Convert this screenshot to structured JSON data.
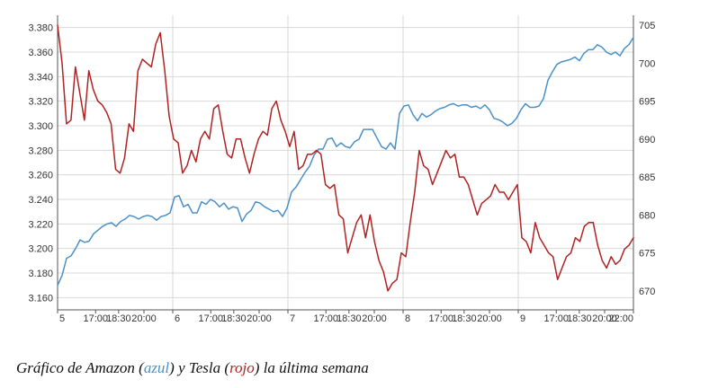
{
  "chart_data": {
    "type": "line",
    "x_ticks": [
      "5",
      "17:00",
      "18:30",
      "20:00",
      "6",
      "17:00",
      "18:30",
      "20:00",
      "7",
      "17:00",
      "18:30",
      "20:00",
      "8",
      "17:00",
      "18:30",
      "20:00",
      "9",
      "17:00",
      "18:30",
      "20:00",
      "22:00"
    ],
    "y_left_ticks": [
      "3.160",
      "3.180",
      "3.200",
      "3.220",
      "3.240",
      "3.260",
      "3.280",
      "3.300",
      "3.320",
      "3.340",
      "3.360",
      "3.380"
    ],
    "y_right_ticks": [
      "670",
      "675",
      "680",
      "685",
      "690",
      "695",
      "700",
      "705"
    ],
    "y_left_range": [
      3150,
      3390
    ],
    "y_right_range": [
      667.5,
      706.3
    ],
    "grid": true,
    "colors": {
      "amazon": "#4a90c8",
      "tesla": "#b22222",
      "grid": "#d8d8d8",
      "axis": "#555555"
    },
    "series": [
      {
        "axis": "left",
        "color": "#4a90c8",
        "values": [
          3170,
          3178,
          3192,
          3194,
          3200,
          3207,
          3205,
          3206,
          3212,
          3215,
          3218,
          3220,
          3221,
          3218,
          3222,
          3224,
          3227,
          3226,
          3224,
          3226,
          3227,
          3226,
          3223,
          3226,
          3227,
          3229,
          3242,
          3243,
          3234,
          3236,
          3229,
          3229,
          3238,
          3236,
          3240,
          3238,
          3234,
          3237,
          3232,
          3234,
          3233,
          3222,
          3228,
          3231,
          3238,
          3237,
          3234,
          3232,
          3230,
          3231,
          3226,
          3233,
          3246,
          3250,
          3256,
          3262,
          3267,
          3276,
          3281,
          3281,
          3289,
          3290,
          3283,
          3286,
          3283,
          3282,
          3287,
          3289,
          3297,
          3297,
          3297,
          3290,
          3283,
          3281,
          3286,
          3281,
          3310,
          3316,
          3317,
          3309,
          3304,
          3310,
          3307,
          3309,
          3312,
          3314,
          3315,
          3317,
          3318,
          3316,
          3317,
          3317,
          3315,
          3316,
          3314,
          3317,
          3313,
          3306,
          3305,
          3303,
          3300,
          3302,
          3306,
          3313,
          3318,
          3315,
          3315,
          3316,
          3322,
          3337,
          3344,
          3350,
          3352,
          3353,
          3354,
          3356,
          3353,
          3359,
          3362,
          3362,
          3366,
          3364,
          3360,
          3358,
          3360,
          3357,
          3363,
          3366,
          3372
        ]
      },
      {
        "axis": "right",
        "color": "#b22222",
        "values": [
          705.0,
          700.0,
          692.0,
          692.5,
          699.5,
          696.0,
          692.5,
          699.0,
          696.5,
          695.0,
          694.5,
          693.5,
          692.0,
          686.0,
          685.5,
          687.5,
          692.0,
          691.0,
          699.0,
          700.5,
          700.0,
          699.5,
          702.5,
          704.0,
          699.0,
          693.0,
          690.0,
          689.5,
          685.5,
          686.5,
          688.5,
          687.0,
          690.0,
          691.0,
          690.0,
          694.0,
          694.5,
          691.0,
          688.0,
          687.5,
          690.0,
          690.0,
          687.5,
          685.5,
          688.0,
          690.0,
          691.0,
          690.5,
          694.0,
          695.0,
          692.5,
          691.0,
          689.0,
          691.0,
          686.0,
          686.5,
          688.0,
          688.0,
          688.5,
          688.0,
          684.0,
          683.5,
          684.0,
          680.0,
          679.5,
          675.0,
          677.0,
          679.0,
          680.0,
          677.0,
          680.0,
          676.5,
          674.0,
          672.5,
          670.0,
          671.0,
          671.5,
          675.0,
          674.5,
          679.0,
          683.0,
          688.5,
          686.5,
          686.0,
          684.0,
          685.5,
          687.0,
          688.5,
          687.5,
          688.0,
          685.0,
          685.0,
          684.0,
          682.0,
          680.0,
          681.5,
          682.0,
          682.5,
          684.0,
          683.0,
          683.0,
          682.0,
          683.0,
          684.0,
          677.0,
          676.5,
          675.0,
          679.0,
          677.0,
          676.0,
          675.0,
          674.5,
          671.5,
          673.0,
          674.5,
          675.0,
          677.0,
          676.5,
          678.5,
          679.0,
          679.0,
          676.0,
          674.0,
          673.0,
          674.5,
          673.5,
          674.0,
          675.5,
          676.0,
          677.0
        ]
      }
    ]
  },
  "caption": {
    "prefix": "Gráfico de Amazon (",
    "amazon": "azul",
    "middle": ") y Tesla (",
    "tesla": "rojo",
    "suffix": ") la última semana"
  }
}
